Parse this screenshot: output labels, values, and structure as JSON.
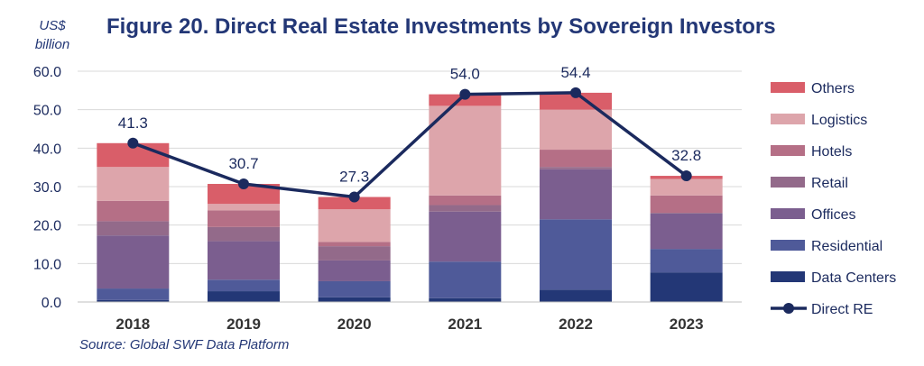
{
  "chart_data": {
    "type": "bar",
    "title": "Figure 20. Direct Real Estate Investments by Sovereign Investors",
    "unit_label_line1": "US$",
    "unit_label_line2": "billion",
    "source": "Source: Global SWF Data Platform",
    "categories": [
      "2018",
      "2019",
      "2020",
      "2021",
      "2022",
      "2023"
    ],
    "ylim": [
      0,
      60
    ],
    "yticks": [
      "0.0",
      "10.0",
      "20.0",
      "30.0",
      "40.0",
      "50.0",
      "60.0"
    ],
    "grid": true,
    "legend_position": "right",
    "stacked": true,
    "series": [
      {
        "name": "Data Centers",
        "color": "#233776",
        "values": [
          0.5,
          2.8,
          1.2,
          1.0,
          3.2,
          7.7
        ]
      },
      {
        "name": "Residential",
        "color": "#4F5A99",
        "values": [
          3.0,
          3.0,
          4.2,
          9.5,
          18.3,
          6.1
        ]
      },
      {
        "name": "Offices",
        "color": "#7B5E8F",
        "values": [
          13.8,
          10.0,
          5.4,
          13.0,
          13.0,
          9.2
        ]
      },
      {
        "name": "Retail",
        "color": "#936A8A",
        "values": [
          3.7,
          3.7,
          3.7,
          1.7,
          0.6,
          0.2
        ]
      },
      {
        "name": "Hotels",
        "color": "#B56F86",
        "values": [
          5.3,
          4.3,
          1.1,
          2.5,
          4.5,
          4.5
        ]
      },
      {
        "name": "Logistics",
        "color": "#DDA5AB",
        "values": [
          8.8,
          1.7,
          8.5,
          23.3,
          10.4,
          4.3
        ]
      },
      {
        "name": "Others",
        "color": "#D95E69",
        "values": [
          6.2,
          5.2,
          3.2,
          3.0,
          4.4,
          0.8
        ]
      }
    ],
    "line_series": {
      "name": "Direct RE",
      "color": "#1B2A5E",
      "values": [
        41.3,
        30.7,
        27.3,
        54.0,
        54.4,
        32.8
      ],
      "labels": [
        "41.3",
        "30.7",
        "27.3",
        "54.0",
        "54.4",
        "32.8"
      ]
    },
    "legend_order": [
      "Others",
      "Logistics",
      "Hotels",
      "Retail",
      "Offices",
      "Residential",
      "Data Centers",
      "Direct RE"
    ]
  }
}
